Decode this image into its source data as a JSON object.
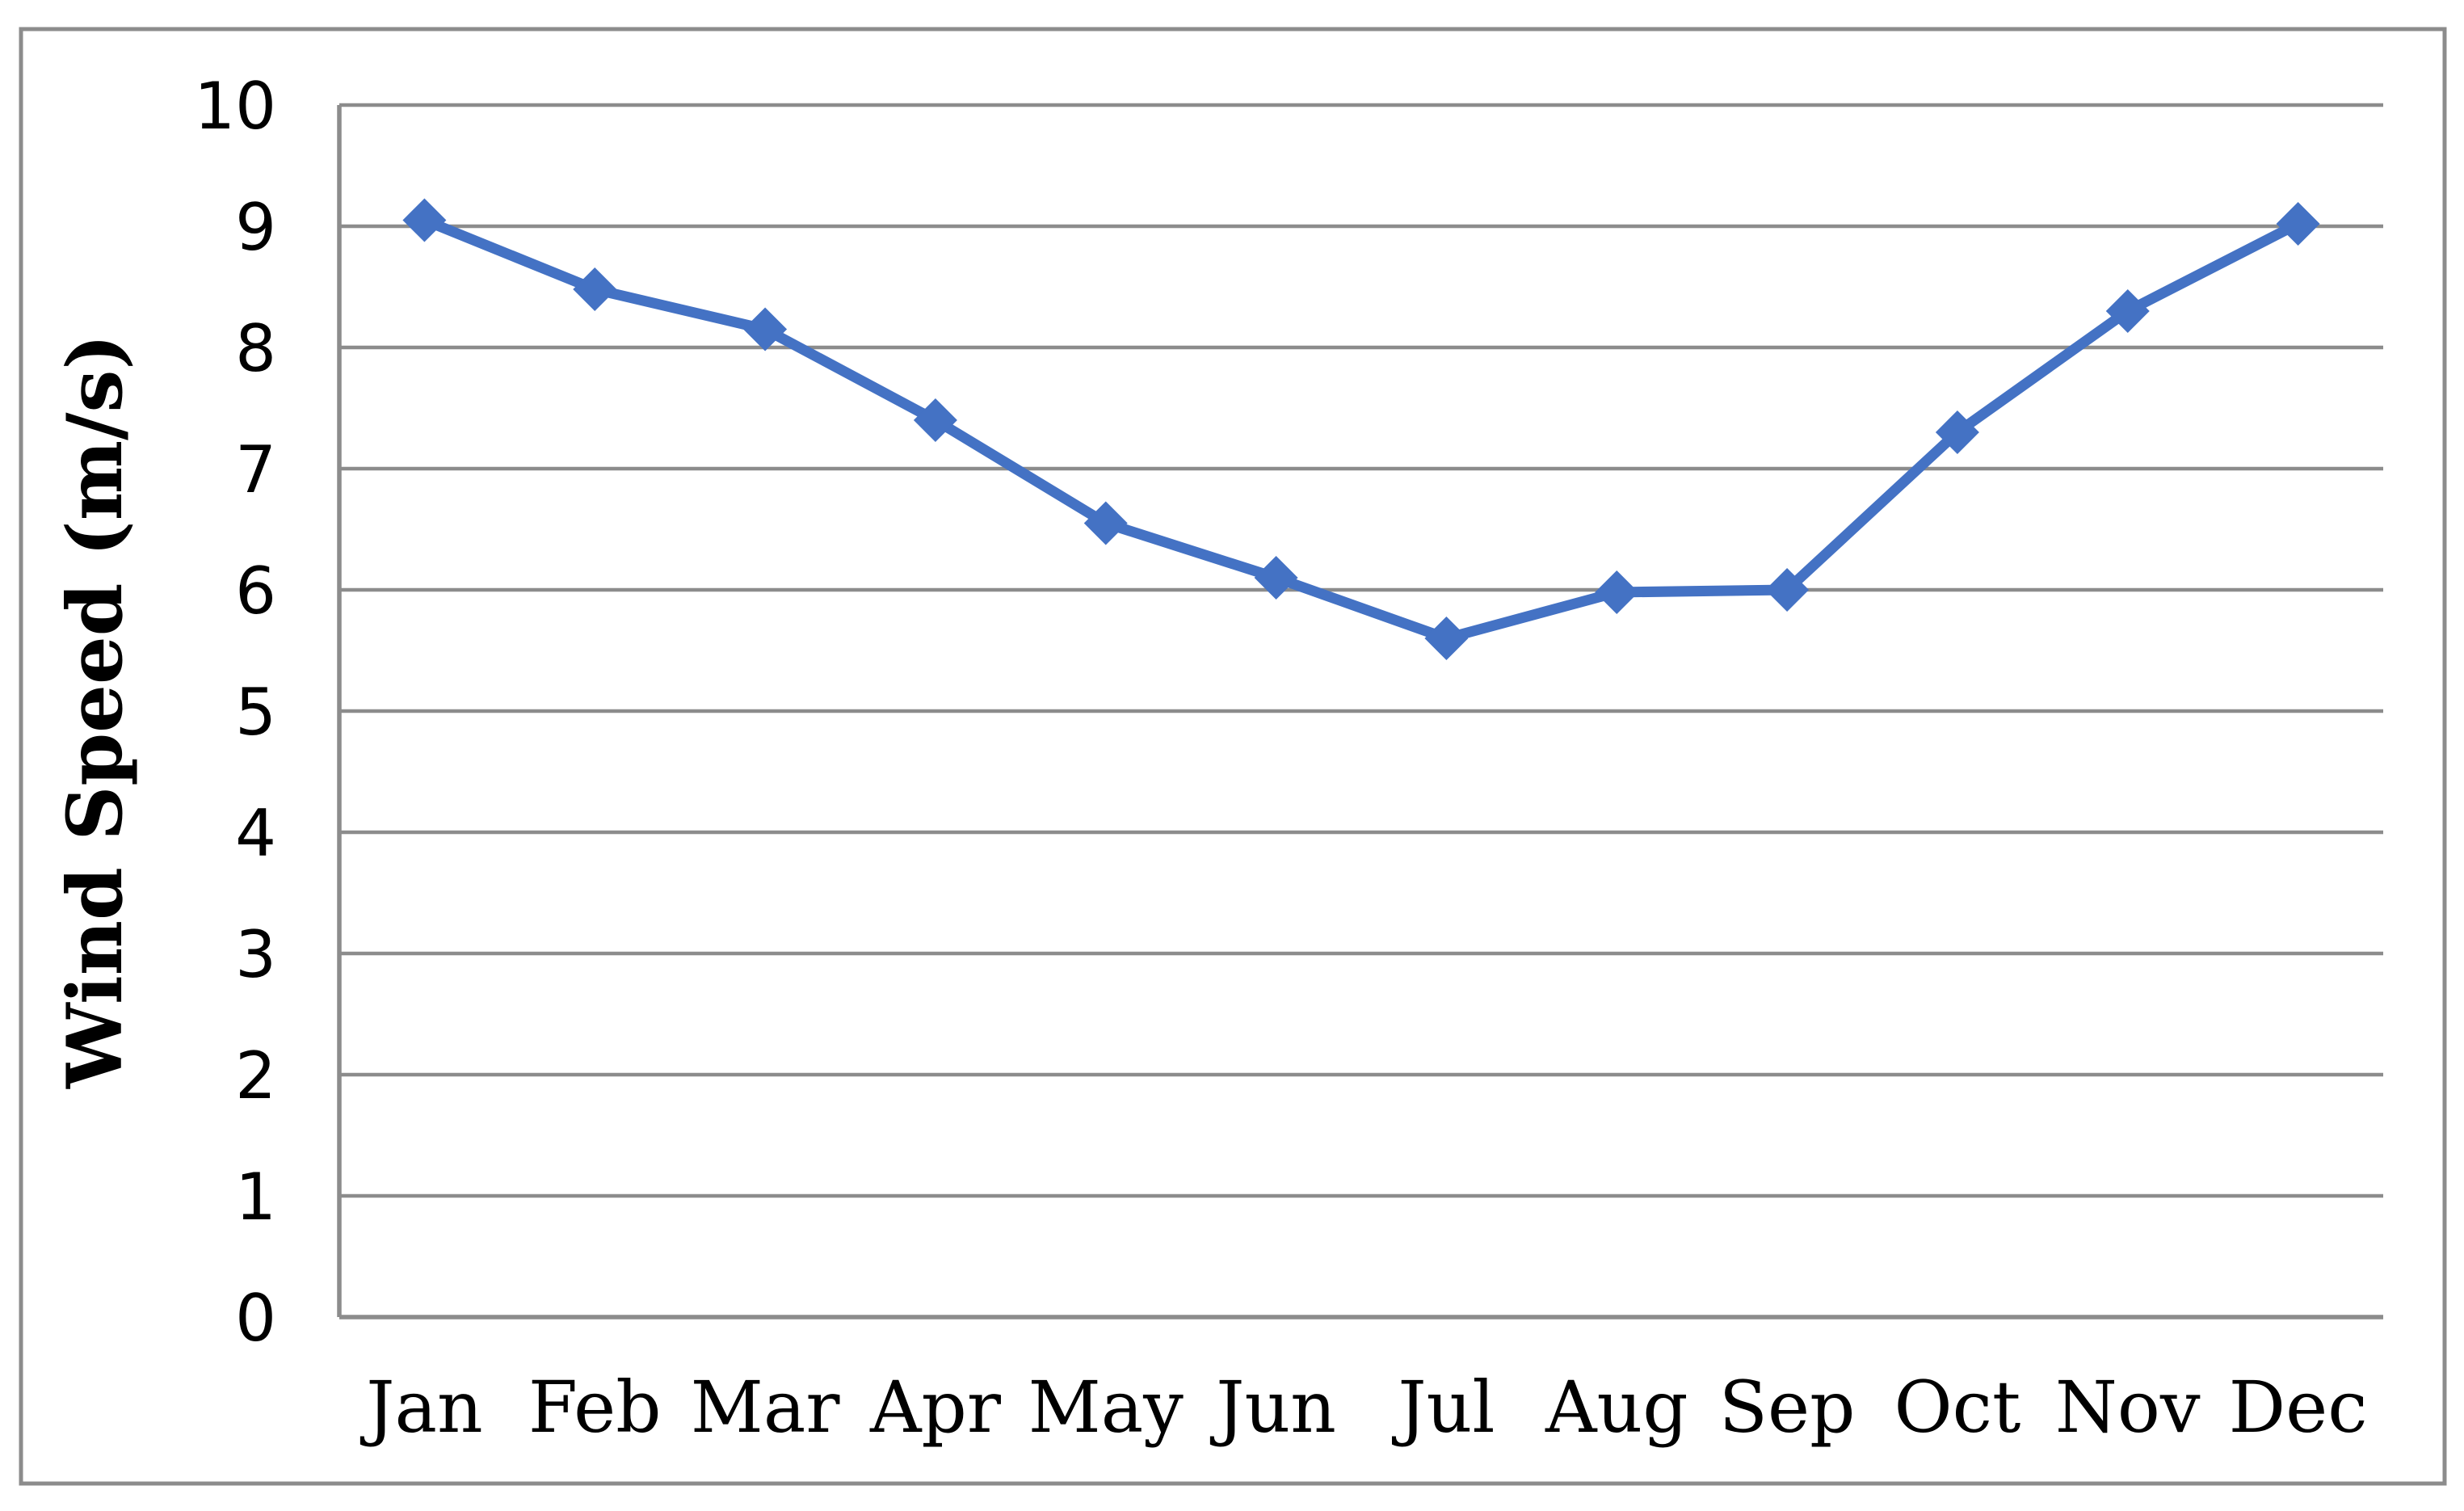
{
  "chart_data": {
    "type": "line",
    "categories": [
      "Jan",
      "Feb",
      "Mar",
      "Apr",
      "May",
      "Jun",
      "Jul",
      "Aug",
      "Sep",
      "Oct",
      "Nov",
      "Dec"
    ],
    "series": [
      {
        "name": "Wind Speed",
        "values": [
          9.05,
          8.48,
          8.15,
          7.4,
          6.55,
          6.1,
          5.6,
          5.98,
          6.0,
          7.3,
          8.3,
          9.02
        ]
      }
    ],
    "xlabel": "",
    "ylabel": "Wind Speed (m/s)",
    "ylim": [
      0,
      10
    ],
    "yticks": [
      0,
      1,
      2,
      3,
      4,
      5,
      6,
      7,
      8,
      9,
      10
    ],
    "grid": true,
    "legend_position": "none",
    "marker_shape": "diamond",
    "colors": {
      "line": "#4472C4",
      "marker": "#4472C4",
      "gridline": "#8C8C8C",
      "axis": "#8C8C8C",
      "frame_border": "#8C8C8C",
      "text": "#000000",
      "background": "#FFFFFF"
    }
  }
}
